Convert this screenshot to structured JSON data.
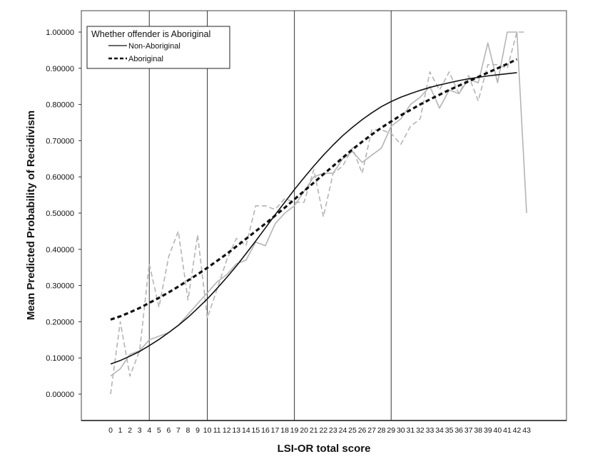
{
  "chart_data": {
    "type": "line",
    "xlabel": "LSI-OR total score",
    "ylabel": "Mean Predicted Probability of Recidivism",
    "ylim": [
      0,
      1
    ],
    "yticks": [
      "0.00000",
      "0.10000",
      "0.20000",
      "0.30000",
      "0.40000",
      "0.50000",
      "0.60000",
      "0.70000",
      "0.80000",
      "0.90000",
      "1.00000"
    ],
    "x": [
      0,
      1,
      2,
      3,
      4,
      5,
      6,
      7,
      8,
      9,
      10,
      11,
      12,
      13,
      14,
      15,
      16,
      17,
      18,
      19,
      20,
      21,
      22,
      23,
      24,
      25,
      26,
      27,
      28,
      29,
      30,
      31,
      32,
      33,
      34,
      35,
      36,
      37,
      38,
      39,
      40,
      41,
      42,
      43
    ],
    "xtick_labels": [
      "0",
      "1",
      "2",
      "3",
      "4",
      "5",
      "6",
      "7",
      "8",
      "9",
      "10",
      "11",
      "12",
      "13",
      "14",
      "15",
      "16",
      "17",
      "18",
      "19",
      "20",
      "21",
      "22",
      "23",
      "24",
      "25",
      "26",
      "27",
      "28",
      "29",
      "30",
      "31",
      "32",
      "33",
      "34",
      "35",
      "36",
      "37",
      "38",
      "39",
      "40",
      "41",
      "42",
      "43"
    ],
    "reference_lines_x": [
      4,
      10,
      19,
      29
    ],
    "legend": {
      "title": "Whether offender is Aboriginal",
      "position": "top-left",
      "entries": [
        "Non-Aboriginal",
        "Aboriginal"
      ]
    },
    "series": [
      {
        "name": "Non-Aboriginal",
        "kind": "fitted",
        "style": "solid",
        "color": "#111111",
        "x": [
          0,
          1,
          2,
          3,
          4,
          5,
          6,
          7,
          8,
          9,
          10,
          11,
          12,
          13,
          14,
          15,
          16,
          17,
          18,
          19,
          20,
          21,
          22,
          23,
          24,
          25,
          26,
          27,
          28,
          29,
          30,
          31,
          32,
          33,
          34,
          35,
          36,
          37,
          38,
          39,
          40,
          41,
          42
        ],
        "values": [
          0.083,
          0.093,
          0.105,
          0.118,
          0.134,
          0.151,
          0.17,
          0.19,
          0.212,
          0.237,
          0.263,
          0.292,
          0.322,
          0.354,
          0.388,
          0.423,
          0.459,
          0.495,
          0.53,
          0.565,
          0.598,
          0.63,
          0.66,
          0.688,
          0.714,
          0.737,
          0.758,
          0.777,
          0.794,
          0.808,
          0.82,
          0.83,
          0.839,
          0.847,
          0.854,
          0.86,
          0.866,
          0.871,
          0.875,
          0.879,
          0.882,
          0.885,
          0.888
        ]
      },
      {
        "name": "Aboriginal",
        "kind": "fitted",
        "style": "dashed",
        "color": "#111111",
        "x": [
          0,
          1,
          2,
          3,
          4,
          5,
          6,
          7,
          8,
          9,
          10,
          11,
          12,
          13,
          14,
          15,
          16,
          17,
          18,
          19,
          20,
          21,
          22,
          23,
          24,
          25,
          26,
          27,
          28,
          29,
          30,
          31,
          32,
          33,
          34,
          35,
          36,
          37,
          38,
          39,
          40,
          41,
          42
        ],
        "values": [
          0.206,
          0.215,
          0.226,
          0.238,
          0.252,
          0.266,
          0.281,
          0.297,
          0.314,
          0.331,
          0.349,
          0.368,
          0.387,
          0.408,
          0.429,
          0.45,
          0.471,
          0.493,
          0.515,
          0.538,
          0.561,
          0.584,
          0.607,
          0.63,
          0.653,
          0.676,
          0.697,
          0.717,
          0.736,
          0.753,
          0.77,
          0.785,
          0.8,
          0.814,
          0.827,
          0.84,
          0.852,
          0.864,
          0.876,
          0.888,
          0.9,
          0.912,
          0.925
        ]
      },
      {
        "name": "Non-Aboriginal (observed)",
        "kind": "observed",
        "style": "solid",
        "color": "#b4b4b4",
        "x": [
          0,
          1,
          2,
          3,
          4,
          5,
          6,
          7,
          8,
          9,
          10,
          11,
          12,
          13,
          14,
          15,
          16,
          17,
          18,
          19,
          20,
          21,
          22,
          23,
          24,
          25,
          26,
          27,
          28,
          29,
          30,
          31,
          32,
          33,
          34,
          35,
          36,
          37,
          38,
          39,
          40,
          41,
          42,
          43
        ],
        "values": [
          0.05,
          0.07,
          0.11,
          0.12,
          0.15,
          0.16,
          0.17,
          0.19,
          0.22,
          0.25,
          0.28,
          0.31,
          0.33,
          0.36,
          0.37,
          0.42,
          0.41,
          0.47,
          0.5,
          0.52,
          0.56,
          0.6,
          0.61,
          0.61,
          0.65,
          0.67,
          0.64,
          0.66,
          0.68,
          0.74,
          0.76,
          0.8,
          0.82,
          0.85,
          0.79,
          0.84,
          0.83,
          0.87,
          0.86,
          0.97,
          0.86,
          1.0,
          1.0,
          0.5
        ]
      },
      {
        "name": "Aboriginal (observed)",
        "kind": "observed",
        "style": "dashed",
        "color": "#b4b4b4",
        "x": [
          0,
          1,
          2,
          3,
          4,
          5,
          6,
          7,
          8,
          9,
          10,
          11,
          12,
          13,
          14,
          15,
          16,
          17,
          18,
          19,
          20,
          21,
          22,
          23,
          24,
          25,
          26,
          27,
          28,
          29,
          30,
          31,
          32,
          33,
          34,
          35,
          36,
          37,
          38,
          39,
          40,
          41,
          42,
          43
        ],
        "values": [
          0.0,
          0.2,
          0.05,
          0.12,
          0.36,
          0.24,
          0.38,
          0.45,
          0.26,
          0.44,
          0.21,
          0.29,
          0.37,
          0.43,
          0.41,
          0.52,
          0.52,
          0.51,
          0.54,
          0.53,
          0.53,
          0.62,
          0.49,
          0.61,
          0.63,
          0.68,
          0.61,
          0.73,
          0.73,
          0.72,
          0.69,
          0.74,
          0.76,
          0.89,
          0.84,
          0.89,
          0.83,
          0.88,
          0.81,
          0.91,
          0.91,
          0.9,
          1.0,
          1.0
        ]
      }
    ]
  }
}
